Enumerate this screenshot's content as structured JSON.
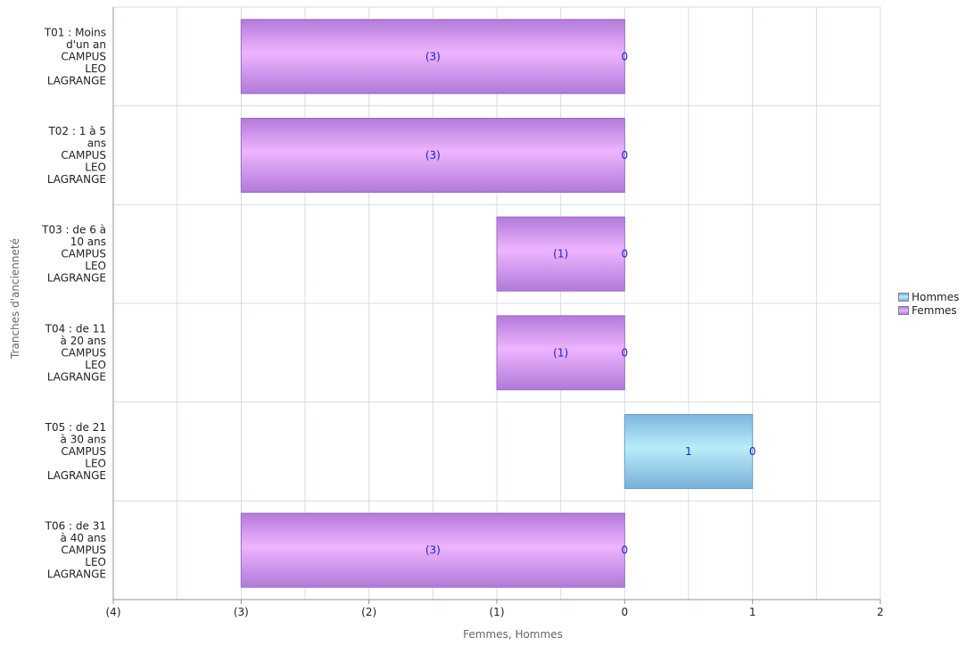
{
  "chart_data": {
    "type": "bar",
    "orientation": "horizontal",
    "stacked": true,
    "xlabel": "Femmes, Hommes",
    "ylabel": "Tranches d'ancienneté",
    "xlim": [
      -4,
      2
    ],
    "xticks": [
      {
        "value": -4,
        "label": "(4)"
      },
      {
        "value": -3,
        "label": "(3)"
      },
      {
        "value": -2,
        "label": "(2)"
      },
      {
        "value": -1,
        "label": "(1)"
      },
      {
        "value": 0,
        "label": "0"
      },
      {
        "value": 1,
        "label": "1"
      },
      {
        "value": 2,
        "label": "2"
      }
    ],
    "categories": [
      [
        "T01 : Moins",
        "d'un an",
        "CAMPUS",
        "LEO",
        "LAGRANGE"
      ],
      [
        "T02 : 1 à 5",
        "ans",
        "CAMPUS",
        "LEO",
        "LAGRANGE"
      ],
      [
        "T03 : de 6 à",
        "10 ans",
        "CAMPUS",
        "LEO",
        "LAGRANGE"
      ],
      [
        "T04 : de 11",
        "à 20 ans",
        "CAMPUS",
        "LEO",
        "LAGRANGE"
      ],
      [
        "T05 : de 21",
        "à 30 ans",
        "CAMPUS",
        "LEO",
        "LAGRANGE"
      ],
      [
        "T06 : de 31",
        "à 40 ans",
        "CAMPUS",
        "LEO",
        "LAGRANGE"
      ]
    ],
    "series": [
      {
        "name": "Hommes",
        "values": [
          0,
          0,
          0,
          0,
          1,
          0
        ],
        "labels": [
          "0",
          "0",
          "0",
          "0",
          "1",
          "0"
        ],
        "color": "#8cc4e6"
      },
      {
        "name": "Femmes",
        "values": [
          -3,
          -3,
          -1,
          -1,
          0,
          -3
        ],
        "labels": [
          "(3)",
          "(3)",
          "(1)",
          "(1)",
          "0",
          "(3)"
        ],
        "color": "#c38ee8"
      }
    ],
    "legend": {
      "position": "right",
      "entries": [
        "Hommes",
        "Femmes"
      ]
    },
    "grid": true
  }
}
